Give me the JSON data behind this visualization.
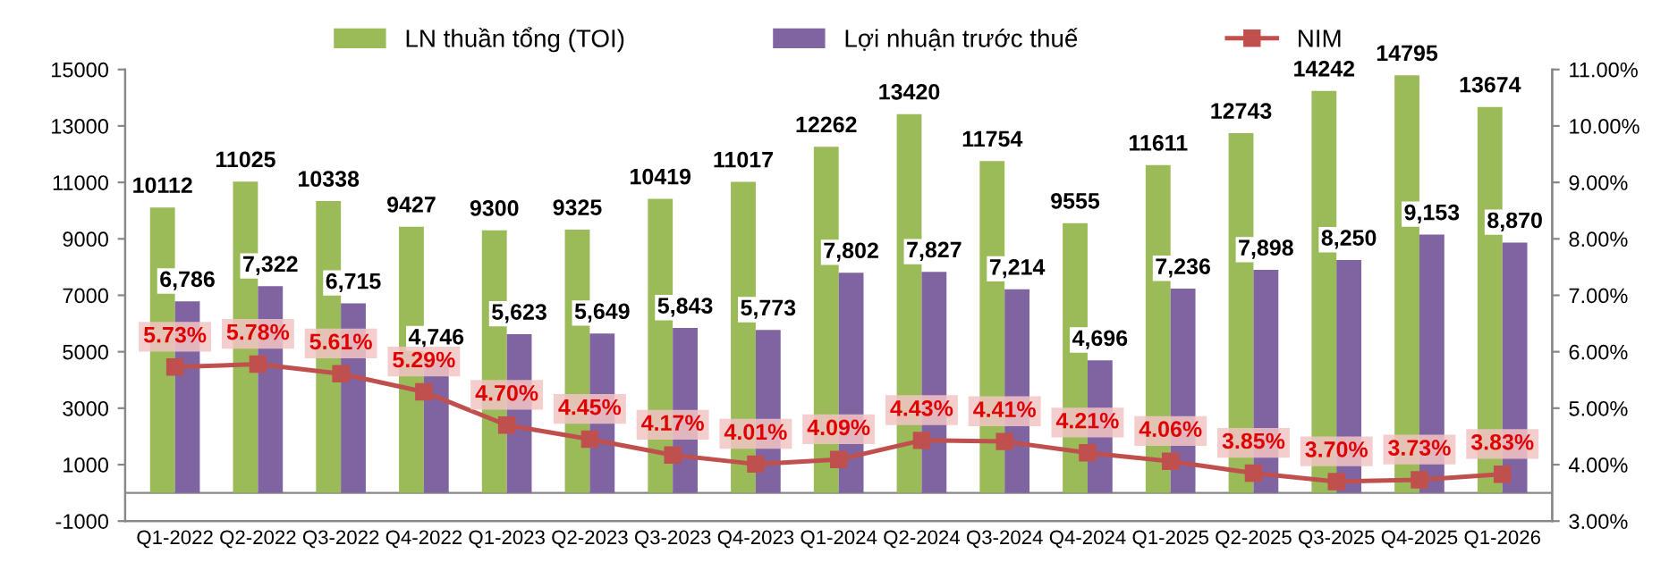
{
  "chart_data": {
    "type": "bar",
    "categories": [
      "Q1-2022",
      "Q2-2022",
      "Q3-2022",
      "Q4-2022",
      "Q1-2023",
      "Q2-2023",
      "Q3-2023",
      "Q4-2023",
      "Q1-2024",
      "Q2-2024",
      "Q3-2024",
      "Q4-2024",
      "Q1-2025",
      "Q2-2025",
      "Q3-2025",
      "Q4-2025",
      "Q1-2026"
    ],
    "series": [
      {
        "name": "LN thuần tổng (TOI)",
        "color": "#9bbb59",
        "values": [
          10112,
          11025,
          10338,
          9427,
          9300,
          9325,
          10419,
          11017,
          12262,
          13420,
          11754,
          9555,
          11611,
          12743,
          14242,
          14795,
          13674
        ],
        "value_labels": [
          "10112",
          "11025",
          "10338",
          "9427",
          "9300",
          "9325",
          "10419",
          "11017",
          "12262",
          "13420",
          "11754",
          "9555",
          "11611",
          "12743",
          "14242",
          "14795",
          "13674"
        ]
      },
      {
        "name": "Lợi nhuận trước thuế",
        "color": "#8064a2",
        "values": [
          6786,
          7322,
          6715,
          4746,
          5623,
          5649,
          5843,
          5773,
          7802,
          7827,
          7214,
          4696,
          7236,
          7898,
          8250,
          9153,
          8870
        ],
        "value_labels": [
          "6,786",
          "7,322",
          "6,715",
          "4,746",
          "5,623",
          "5,649",
          "5,843",
          "5,773",
          "7,802",
          "7,827",
          "7,214",
          "4,696",
          "7,236",
          "7,898",
          "8,250",
          "9,153",
          "8,870"
        ]
      },
      {
        "name": "NIM",
        "type": "line",
        "axis": "y2",
        "color": "#c0504d",
        "marker": "square",
        "values": [
          5.73,
          5.78,
          5.61,
          5.29,
          4.7,
          4.45,
          4.17,
          4.01,
          4.09,
          4.43,
          4.41,
          4.21,
          4.06,
          3.85,
          3.7,
          3.73,
          3.83
        ],
        "value_labels": [
          "5.73%",
          "5.78%",
          "5.61%",
          "5.29%",
          "4.70%",
          "4.45%",
          "4.17%",
          "4.01%",
          "4.09%",
          "4.43%",
          "4.41%",
          "4.21%",
          "4.06%",
          "3.85%",
          "3.70%",
          "3.73%",
          "3.83%"
        ]
      }
    ],
    "ylim": [
      -1000,
      15000
    ],
    "yticks": [
      -1000,
      1000,
      3000,
      5000,
      7000,
      9000,
      11000,
      13000,
      15000
    ],
    "y2lim": [
      3,
      11
    ],
    "y2ticks": [
      {
        "value": 3,
        "label": "3.00%"
      },
      {
        "value": 4,
        "label": "4.00%"
      },
      {
        "value": 5,
        "label": "5.00%"
      },
      {
        "value": 6,
        "label": "6.00%"
      },
      {
        "value": 7,
        "label": "7.00%"
      },
      {
        "value": 8,
        "label": "8.00%"
      },
      {
        "value": 9,
        "label": "9.00%"
      },
      {
        "value": 10,
        "label": "10.00%"
      },
      {
        "value": 11,
        "label": "11.00%"
      }
    ],
    "grid": false,
    "legend": "top"
  }
}
